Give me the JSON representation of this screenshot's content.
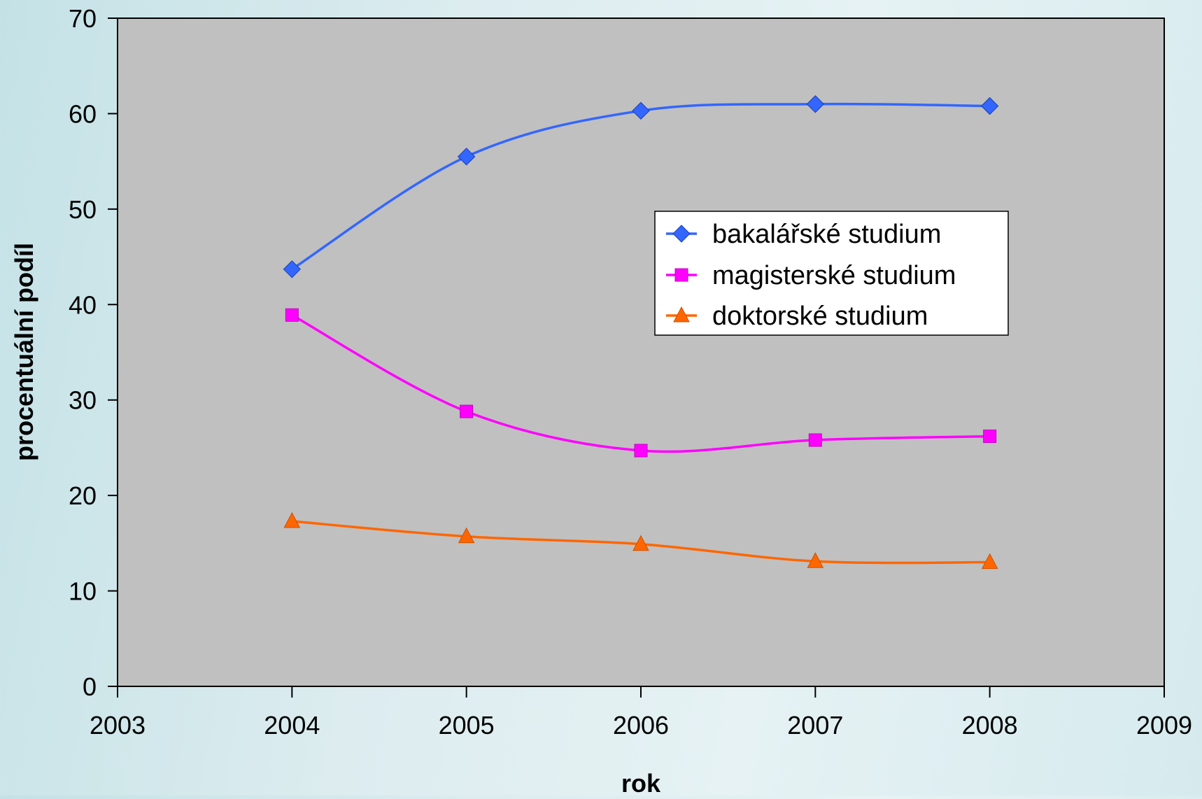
{
  "chart_data": {
    "type": "line",
    "title": "",
    "xlabel": "rok",
    "ylabel": "procentuální podíl",
    "xlim": [
      2003,
      2009
    ],
    "ylim": [
      0,
      70
    ],
    "x_ticks": [
      "2003",
      "2004",
      "2005",
      "2006",
      "2007",
      "2008",
      "2009"
    ],
    "y_ticks": [
      "0",
      "10",
      "20",
      "30",
      "40",
      "50",
      "60",
      "70"
    ],
    "x": [
      2004,
      2005,
      2006,
      2007,
      2008
    ],
    "grid": false,
    "legend_position": "right-center",
    "plot_background": "#c0c0c0",
    "series": [
      {
        "name": "bakalářské studium",
        "color": "#3366ff",
        "marker": "diamond",
        "values": [
          43.7,
          55.5,
          60.3,
          61.0,
          60.8
        ]
      },
      {
        "name": "magisterské studium",
        "color": "#ff00ff",
        "marker": "square",
        "values": [
          38.9,
          28.8,
          24.7,
          25.8,
          26.2
        ]
      },
      {
        "name": "doktorské studium",
        "color": "#ff6600",
        "marker": "triangle",
        "values": [
          17.3,
          15.7,
          14.9,
          13.1,
          13.0
        ]
      }
    ]
  }
}
